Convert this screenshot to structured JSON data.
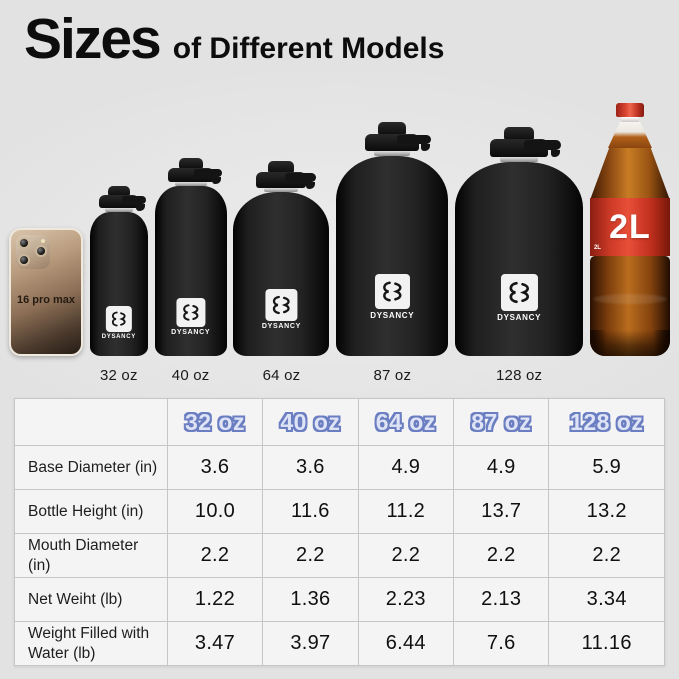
{
  "title": {
    "main": "Sizes",
    "rest": "of Different Models"
  },
  "brand": {
    "name": "DYSANCY"
  },
  "phone": {
    "label": "16 pro max"
  },
  "cola": {
    "big_label": "2L",
    "small_label": "2L"
  },
  "lineup": {
    "sizes": [
      {
        "label": "32 oz"
      },
      {
        "label": "40 oz"
      },
      {
        "label": "64 oz"
      },
      {
        "label": "87 oz"
      },
      {
        "label": "128 oz"
      }
    ]
  },
  "table": {
    "columns": [
      "32 oz",
      "40 oz",
      "64 oz",
      "87 oz",
      "128 oz"
    ],
    "rows": [
      {
        "label": "Base Diameter (in)",
        "values": [
          "3.6",
          "3.6",
          "4.9",
          "4.9",
          "5.9"
        ]
      },
      {
        "label": "Bottle Height (in)",
        "values": [
          "10.0",
          "11.6",
          "11.2",
          "13.7",
          "13.2"
        ]
      },
      {
        "label": "Mouth Diameter (in)",
        "values": [
          "2.2",
          "2.2",
          "2.2",
          "2.2",
          "2.2"
        ]
      },
      {
        "label": "Net Weiht (lb)",
        "values": [
          "1.22",
          "1.36",
          "2.23",
          "2.13",
          "3.34"
        ]
      },
      {
        "label": "Weight Filled with Water (lb)",
        "values": [
          "3.47",
          "3.97",
          "6.44",
          "7.6",
          "11.16"
        ]
      }
    ]
  },
  "chart_data": {
    "type": "table",
    "title": "Sizes of Different Models",
    "columns": [
      "32 oz",
      "40 oz",
      "64 oz",
      "87 oz",
      "128 oz"
    ],
    "rows": [
      {
        "label": "Base Diameter (in)",
        "values": [
          3.6,
          3.6,
          4.9,
          4.9,
          5.9
        ]
      },
      {
        "label": "Bottle Height (in)",
        "values": [
          10.0,
          11.6,
          11.2,
          13.7,
          13.2
        ]
      },
      {
        "label": "Mouth Diameter (in)",
        "values": [
          2.2,
          2.2,
          2.2,
          2.2,
          2.2
        ]
      },
      {
        "label": "Net Weiht (lb)",
        "values": [
          1.22,
          1.36,
          2.23,
          2.13,
          3.34
        ]
      },
      {
        "label": "Weight Filled with Water (lb)",
        "values": [
          3.47,
          3.97,
          6.44,
          7.6,
          11.16
        ]
      }
    ]
  },
  "colors": {
    "background": "#e5e5e5",
    "bottle_black": "#1f1f1f",
    "table_header_fill": "#dee4f5",
    "table_header_outline": "#6b7ec2",
    "cola_red": "#d63a28"
  }
}
